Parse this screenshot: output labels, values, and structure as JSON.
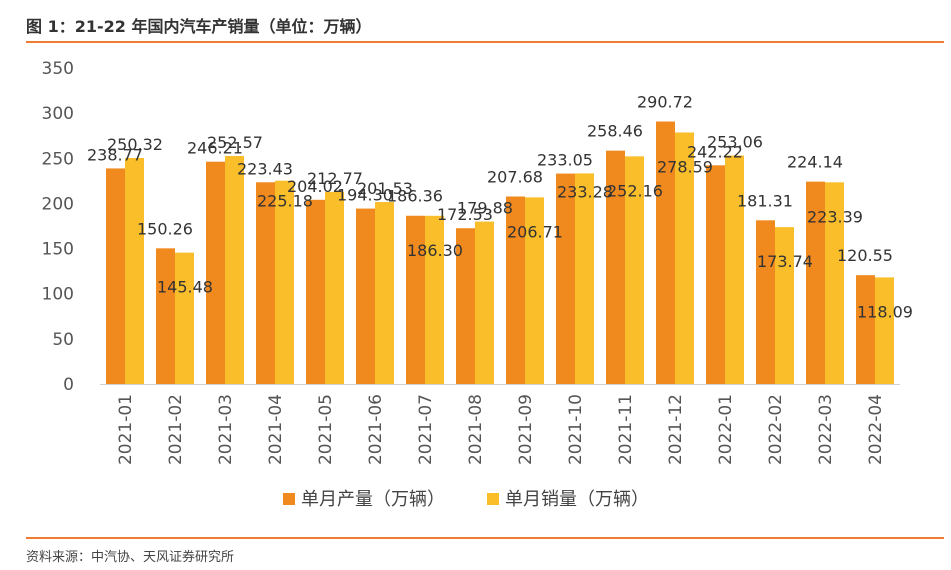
{
  "header": {
    "title": "图 1：21-22 年国内汽车产销量（单位：万辆）"
  },
  "footer": {
    "source": "资料来源：中汽协、天风证券研究所"
  },
  "colors": {
    "accent_rule": "#ED7D31",
    "production": "#F08A1E",
    "sales": "#F9BE2A",
    "axis_text": "#555555",
    "label_text": "#333333"
  },
  "chart_data": {
    "type": "bar",
    "title": "",
    "xlabel": "",
    "ylabel": "",
    "ylim": [
      0,
      350
    ],
    "yticks": [
      0,
      50,
      100,
      150,
      200,
      250,
      300,
      350
    ],
    "grid": false,
    "legend_position": "bottom",
    "categories": [
      "2021-01",
      "2021-02",
      "2021-03",
      "2021-04",
      "2021-05",
      "2021-06",
      "2021-07",
      "2021-08",
      "2021-09",
      "2021-10",
      "2021-11",
      "2021-12",
      "2022-01",
      "2022-02",
      "2022-03",
      "2022-04"
    ],
    "series": [
      {
        "name": "单月产量（万辆）",
        "color": "#F08A1E",
        "values": [
          238.77,
          150.26,
          246.21,
          223.43,
          204.02,
          194.3,
          186.36,
          172.53,
          207.68,
          233.05,
          258.46,
          290.72,
          242.22,
          181.31,
          224.14,
          120.55
        ],
        "labels": [
          "238.77",
          "150.26",
          "246.21",
          "223.43",
          "204.02",
          "194.30",
          "186.36",
          "172.53",
          "207.68",
          "233.05",
          "258.46",
          "290.72",
          "242.22",
          "181.31",
          "224.14",
          "120.55"
        ]
      },
      {
        "name": "单月销量（万辆）",
        "color": "#F9BE2A",
        "values": [
          250.32,
          145.48,
          252.57,
          225.18,
          212.77,
          201.53,
          186.3,
          179.88,
          206.71,
          233.28,
          252.16,
          278.59,
          253.06,
          173.74,
          223.39,
          118.09
        ],
        "labels": [
          "250.32",
          "145.48",
          "252.57",
          "225.18",
          "212.77",
          "201.53",
          "186.30",
          "179.88",
          "206.71",
          "233.28",
          "252.16",
          "278.59",
          "253.06",
          "173.74",
          "223.39",
          "118.09"
        ]
      }
    ]
  }
}
